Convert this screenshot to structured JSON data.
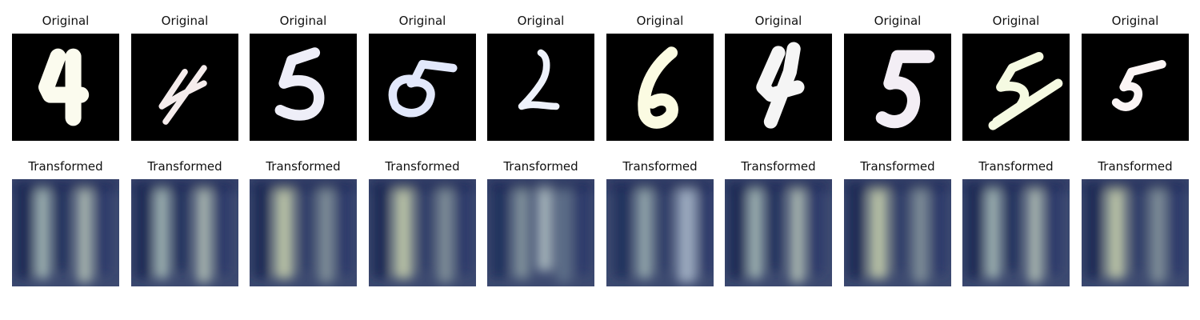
{
  "rows": [
    {
      "label": "Original",
      "panels": [
        {
          "title": "Original",
          "digit": "4",
          "glyph": "digit-4",
          "color": "#fbfbee"
        },
        {
          "title": "Original",
          "digit": "4",
          "glyph": "digit-4-slanted",
          "color": "#f5ecec"
        },
        {
          "title": "Original",
          "digit": "5",
          "glyph": "digit-5",
          "color": "#eeeef8"
        },
        {
          "title": "Original",
          "digit": "5",
          "glyph": "digit-5-wide",
          "color": "#e2e8fb"
        },
        {
          "title": "Original",
          "digit": "2",
          "glyph": "digit-2",
          "color": "#eef2fb"
        },
        {
          "title": "Original",
          "digit": "6",
          "glyph": "digit-6",
          "color": "#fbfbe2"
        },
        {
          "title": "Original",
          "digit": "4",
          "glyph": "digit-4-bold",
          "color": "#f5f5f5"
        },
        {
          "title": "Original",
          "digit": "5",
          "glyph": "digit-5-tall",
          "color": "#f3eef5"
        },
        {
          "title": "Original",
          "digit": "5",
          "glyph": "digit-5-striped",
          "color": "#f5fae2"
        },
        {
          "title": "Original",
          "digit": "5",
          "glyph": "digit-5-small",
          "color": "#fbf5f5"
        }
      ]
    },
    {
      "label": "Transformed",
      "panels": [
        {
          "title": "Transformed",
          "glyph": "blur-1-4"
        },
        {
          "title": "Transformed",
          "glyph": "blur-1-4"
        },
        {
          "title": "Transformed",
          "glyph": "blur-5"
        },
        {
          "title": "Transformed",
          "glyph": "blur-5"
        },
        {
          "title": "Transformed",
          "glyph": "blur-2"
        },
        {
          "title": "Transformed",
          "glyph": "blur-1-0"
        },
        {
          "title": "Transformed",
          "glyph": "blur-1-4"
        },
        {
          "title": "Transformed",
          "glyph": "blur-5"
        },
        {
          "title": "Transformed",
          "glyph": "blur-1-4"
        },
        {
          "title": "Transformed",
          "glyph": "blur-5"
        }
      ]
    }
  ],
  "colors": {
    "original_bg": "#000000",
    "transformed_base": "#3d4a70",
    "transformed_dark": "#1c2a55",
    "transformed_light": "#a7b6ad"
  }
}
